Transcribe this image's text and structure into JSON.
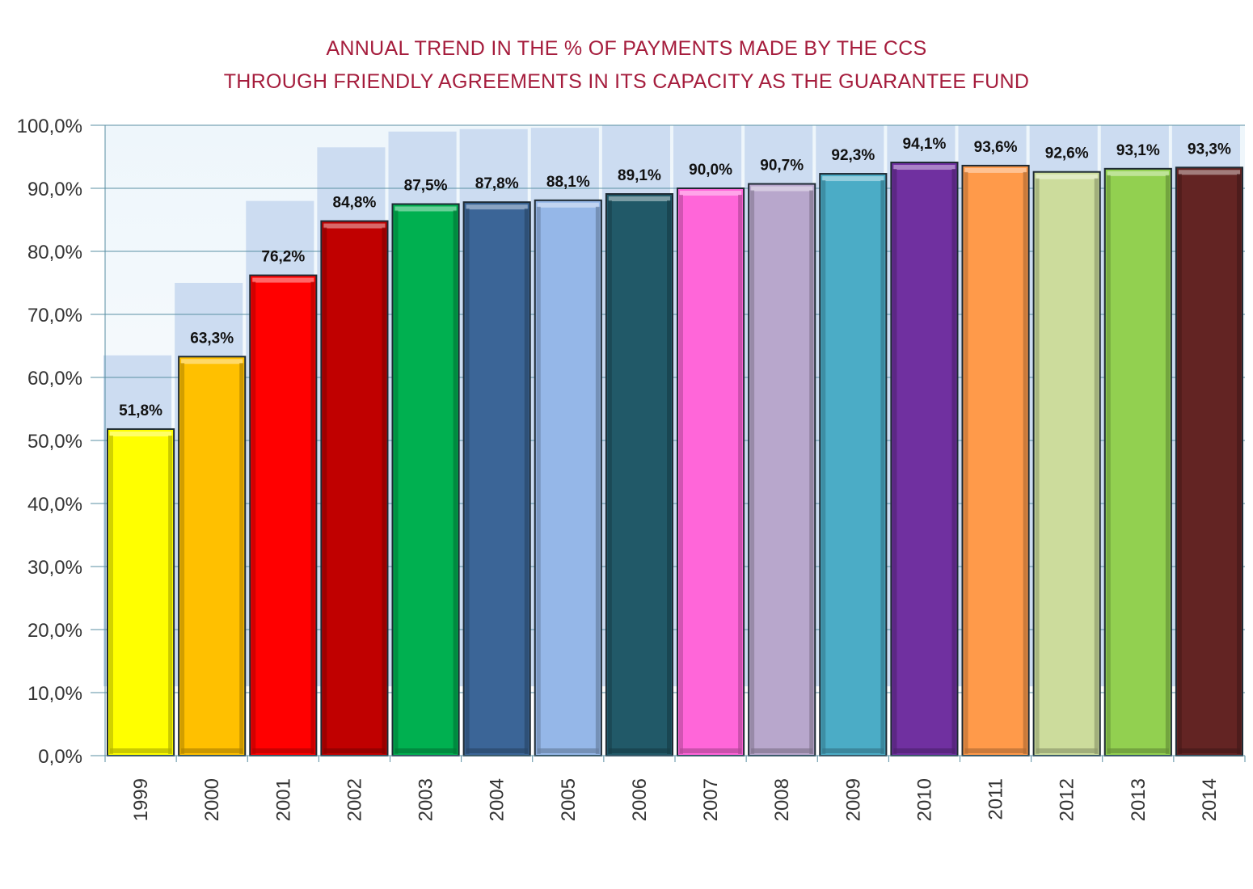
{
  "chart_data": {
    "type": "bar",
    "title_lines": [
      "ANNUAL TREND IN THE % OF PAYMENTS MADE BY THE CCS",
      "THROUGH FRIENDLY AGREEMENTS IN ITS CAPACITY AS THE GUARANTEE FUND"
    ],
    "categories": [
      "1999",
      "2000",
      "2001",
      "2002",
      "2003",
      "2004",
      "2005",
      "2006",
      "2007",
      "2008",
      "2009",
      "2010",
      "2011",
      "2012",
      "2013",
      "2014"
    ],
    "values": [
      51.8,
      63.3,
      76.2,
      84.8,
      87.5,
      87.8,
      88.1,
      89.1,
      90.0,
      90.7,
      92.3,
      94.1,
      93.6,
      92.6,
      93.1,
      93.3
    ],
    "value_labels": [
      "51,8%",
      "63,3%",
      "76,2%",
      "84,8%",
      "87,5%",
      "87,8%",
      "88,1%",
      "89,1%",
      "90,0%",
      "90,7%",
      "92,3%",
      "94,1%",
      "93,6%",
      "92,6%",
      "93,1%",
      "93,3%"
    ],
    "bar_colors": [
      "#ffff00",
      "#ffc000",
      "#ff0000",
      "#c00000",
      "#00b050",
      "#3b6597",
      "#95b7e8",
      "#215968",
      "#ff66d9",
      "#b8a7cc",
      "#4bacc6",
      "#7030a0",
      "#ff9a4a",
      "#ccdc9c",
      "#92d050",
      "#632423"
    ],
    "ylim": [
      0,
      100
    ],
    "y_ticks": [
      0,
      10,
      20,
      30,
      40,
      50,
      60,
      70,
      80,
      90,
      100
    ],
    "y_tick_labels": [
      "0,0%",
      "10,0%",
      "20,0%",
      "30,0%",
      "40,0%",
      "50,0%",
      "60,0%",
      "70,0%",
      "80,0%",
      "90,0%",
      "100,0%"
    ],
    "grid": true,
    "xlabel": "",
    "ylabel": ""
  }
}
